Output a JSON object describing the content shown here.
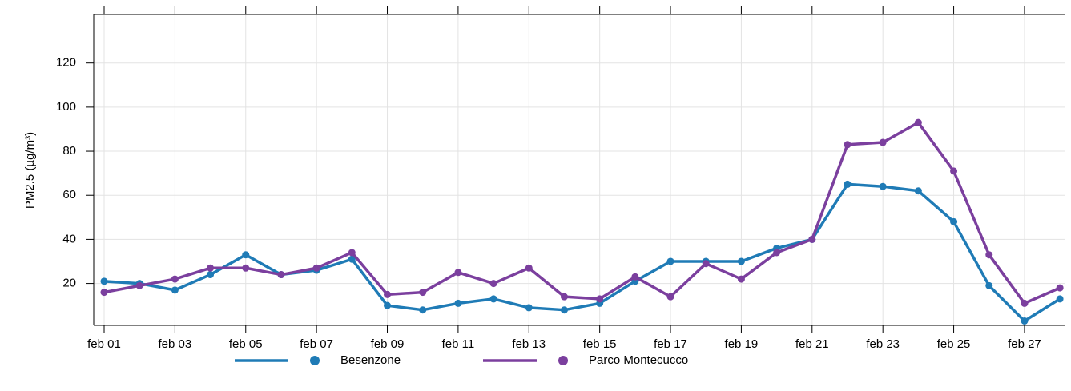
{
  "chart_data": {
    "type": "line",
    "y_label": "PM2.5 (µg/m³)",
    "categories": [
      "feb 01",
      null,
      "feb 03",
      null,
      "feb 05",
      null,
      "feb 07",
      null,
      "feb 09",
      null,
      "feb 11",
      null,
      "feb 13",
      null,
      "feb 15",
      null,
      "feb 17",
      null,
      "feb 19",
      null,
      "feb 21",
      null,
      "feb 23",
      null,
      "feb 25",
      null,
      "feb 27",
      null
    ],
    "series": [
      {
        "name": "Besenzone",
        "color": "#1f7bb6",
        "values": [
          21,
          20,
          17,
          24,
          33,
          24,
          26,
          31,
          10,
          8,
          11,
          13,
          9,
          8,
          11,
          21,
          30,
          30,
          30,
          36,
          40,
          65,
          64,
          62,
          48,
          19,
          3,
          13
        ]
      },
      {
        "name": "Parco Montecucco",
        "color": "#7b3f9e",
        "values": [
          16,
          19,
          22,
          27,
          27,
          24,
          27,
          34,
          15,
          16,
          25,
          20,
          27,
          14,
          13,
          23,
          14,
          29,
          22,
          34,
          40,
          83,
          84,
          93,
          71,
          33,
          11,
          18
        ]
      }
    ],
    "ylim": [
      1,
      142
    ],
    "yticks": [
      20,
      40,
      60,
      80,
      100,
      120
    ],
    "grid": true
  }
}
